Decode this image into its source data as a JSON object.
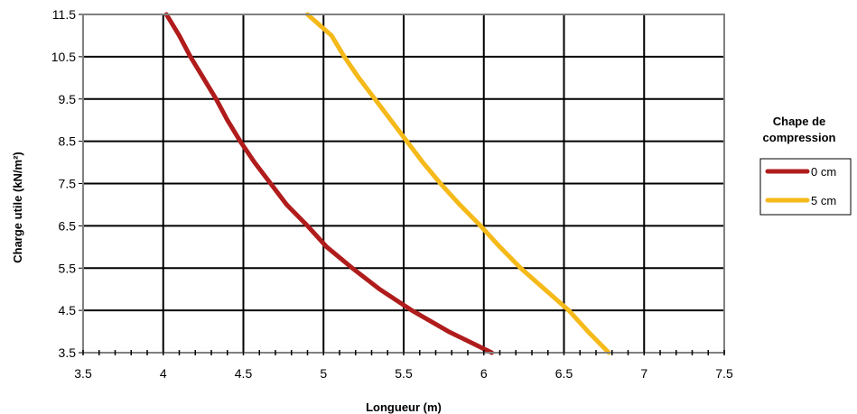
{
  "chart_data": {
    "type": "line",
    "xlabel": "Longueur (m)",
    "ylabel": "Charge utile (kN/m²)",
    "xlim": [
      3.5,
      7.5
    ],
    "ylim": [
      3.5,
      11.5
    ],
    "x_ticks": [
      "3.5",
      "4",
      "4.5",
      "5",
      "5.5",
      "6",
      "6.5",
      "7",
      "7.5"
    ],
    "y_ticks": [
      "3.5",
      "4.5",
      "5.5",
      "6.5",
      "7.5",
      "8.5",
      "9.5",
      "10.5",
      "11.5"
    ],
    "grid": true,
    "legend": {
      "title": "Chape de compression",
      "title_lines": [
        "Chape de",
        "compression"
      ],
      "position": "right"
    },
    "series": [
      {
        "name": "0 cm",
        "color": "#B01C1C",
        "points": [
          [
            4.02,
            11.5
          ],
          [
            4.1,
            11.0
          ],
          [
            4.17,
            10.5
          ],
          [
            4.25,
            10.0
          ],
          [
            4.33,
            9.5
          ],
          [
            4.4,
            9.0
          ],
          [
            4.48,
            8.5
          ],
          [
            4.57,
            8.0
          ],
          [
            4.67,
            7.5
          ],
          [
            4.77,
            7.0
          ],
          [
            4.9,
            6.5
          ],
          [
            5.02,
            6.0
          ],
          [
            5.18,
            5.5
          ],
          [
            5.35,
            5.0
          ],
          [
            5.55,
            4.5
          ],
          [
            5.78,
            4.0
          ],
          [
            6.05,
            3.5
          ]
        ]
      },
      {
        "name": "5 cm",
        "color": "#F5B919",
        "points": [
          [
            4.9,
            11.5
          ],
          [
            5.05,
            11.0
          ],
          [
            5.13,
            10.5
          ],
          [
            5.22,
            10.0
          ],
          [
            5.32,
            9.5
          ],
          [
            5.42,
            9.0
          ],
          [
            5.52,
            8.5
          ],
          [
            5.62,
            8.0
          ],
          [
            5.73,
            7.5
          ],
          [
            5.85,
            7.0
          ],
          [
            5.98,
            6.5
          ],
          [
            6.1,
            6.0
          ],
          [
            6.23,
            5.5
          ],
          [
            6.38,
            5.0
          ],
          [
            6.53,
            4.5
          ],
          [
            6.65,
            4.0
          ],
          [
            6.78,
            3.5
          ]
        ]
      }
    ]
  }
}
